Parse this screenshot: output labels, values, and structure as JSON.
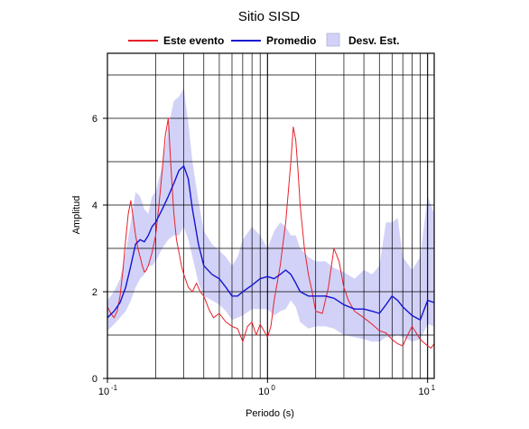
{
  "chart_data": {
    "type": "line",
    "title": "Sitio SISD",
    "xlabel": "Periodo (s)",
    "ylabel": "Amplitud",
    "xscale": "log",
    "xlim": [
      0.1,
      11
    ],
    "ylim": [
      0,
      7.5
    ],
    "x_ticks": [
      {
        "value": 0.1,
        "base": "10",
        "exp": "-1"
      },
      {
        "value": 1,
        "base": "10",
        "exp": "0"
      },
      {
        "value": 10,
        "base": "10",
        "exp": "1"
      }
    ],
    "y_ticks": [
      0,
      2,
      4,
      6
    ],
    "grid": true,
    "legend_position": "top",
    "colors": {
      "este_evento": "#e8202a",
      "promedio": "#1414d2",
      "desv_est": "#d2d2f8"
    },
    "series": [
      {
        "name": "Este evento",
        "color": "#e8202a",
        "x": [
          0.1,
          0.105,
          0.11,
          0.115,
          0.12,
          0.125,
          0.13,
          0.135,
          0.14,
          0.145,
          0.15,
          0.155,
          0.16,
          0.165,
          0.17,
          0.175,
          0.18,
          0.19,
          0.2,
          0.21,
          0.22,
          0.23,
          0.24,
          0.245,
          0.25,
          0.26,
          0.27,
          0.28,
          0.29,
          0.3,
          0.32,
          0.34,
          0.36,
          0.38,
          0.4,
          0.43,
          0.46,
          0.5,
          0.55,
          0.6,
          0.65,
          0.7,
          0.75,
          0.8,
          0.85,
          0.9,
          0.95,
          1.0,
          1.05,
          1.1,
          1.2,
          1.3,
          1.4,
          1.45,
          1.5,
          1.55,
          1.6,
          1.7,
          1.8,
          1.9,
          2.0,
          2.2,
          2.4,
          2.6,
          2.7,
          2.8,
          3.0,
          3.2,
          3.5,
          4.0,
          4.5,
          5.0,
          5.5,
          6.0,
          6.5,
          7.0,
          7.5,
          8.0,
          9.0,
          10.0,
          10.5,
          11.0
        ],
        "y": [
          1.65,
          1.5,
          1.4,
          1.55,
          1.9,
          2.5,
          3.2,
          3.8,
          4.1,
          3.7,
          3.3,
          3.0,
          2.8,
          2.6,
          2.45,
          2.5,
          2.6,
          2.9,
          3.3,
          4.0,
          4.8,
          5.6,
          6.0,
          5.4,
          4.8,
          3.8,
          3.2,
          2.9,
          2.6,
          2.4,
          2.1,
          2.0,
          2.2,
          2.0,
          1.9,
          1.6,
          1.4,
          1.5,
          1.3,
          1.2,
          1.15,
          0.85,
          1.2,
          1.3,
          1.0,
          1.25,
          1.1,
          0.95,
          1.2,
          1.8,
          2.6,
          3.6,
          5.0,
          5.8,
          5.5,
          4.8,
          4.0,
          3.0,
          2.4,
          2.0,
          1.55,
          1.5,
          2.1,
          3.0,
          2.85,
          2.7,
          2.1,
          1.8,
          1.55,
          1.4,
          1.25,
          1.1,
          1.05,
          0.9,
          0.8,
          0.75,
          1.0,
          1.2,
          0.9,
          0.75,
          0.7,
          0.8
        ]
      },
      {
        "name": "Promedio",
        "color": "#1414d2",
        "x": [
          0.1,
          0.11,
          0.12,
          0.13,
          0.14,
          0.15,
          0.16,
          0.17,
          0.18,
          0.19,
          0.2,
          0.22,
          0.24,
          0.26,
          0.28,
          0.3,
          0.32,
          0.34,
          0.37,
          0.4,
          0.45,
          0.5,
          0.55,
          0.6,
          0.65,
          0.7,
          0.8,
          0.9,
          1.0,
          1.1,
          1.2,
          1.3,
          1.4,
          1.5,
          1.6,
          1.8,
          2.0,
          2.3,
          2.6,
          3.0,
          3.5,
          4.0,
          4.5,
          5.0,
          5.5,
          6.0,
          6.5,
          7.0,
          8.0,
          9.0,
          10.0,
          11.0
        ],
        "y": [
          1.4,
          1.55,
          1.75,
          2.1,
          2.6,
          3.1,
          3.2,
          3.15,
          3.3,
          3.5,
          3.6,
          3.9,
          4.2,
          4.5,
          4.8,
          4.9,
          4.6,
          3.9,
          3.1,
          2.6,
          2.4,
          2.3,
          2.1,
          1.9,
          1.9,
          2.0,
          2.15,
          2.3,
          2.35,
          2.3,
          2.4,
          2.5,
          2.4,
          2.2,
          2.0,
          1.9,
          1.9,
          1.9,
          1.85,
          1.7,
          1.6,
          1.6,
          1.55,
          1.5,
          1.7,
          1.9,
          1.8,
          1.65,
          1.45,
          1.35,
          1.8,
          1.75
        ]
      }
    ],
    "bands": [
      {
        "name": "Desv. Est.",
        "color": "#d2d2f8",
        "x": [
          0.1,
          0.11,
          0.12,
          0.13,
          0.14,
          0.15,
          0.16,
          0.17,
          0.18,
          0.19,
          0.2,
          0.22,
          0.24,
          0.26,
          0.28,
          0.3,
          0.32,
          0.34,
          0.37,
          0.4,
          0.45,
          0.5,
          0.55,
          0.6,
          0.65,
          0.7,
          0.8,
          0.9,
          1.0,
          1.1,
          1.2,
          1.3,
          1.4,
          1.5,
          1.6,
          1.8,
          2.0,
          2.3,
          2.6,
          3.0,
          3.5,
          4.0,
          4.5,
          5.0,
          5.5,
          6.0,
          6.5,
          7.0,
          8.0,
          9.0,
          10.0,
          11.0
        ],
        "upper": [
          1.8,
          2.0,
          2.3,
          2.9,
          3.6,
          4.3,
          4.2,
          3.9,
          3.8,
          4.2,
          4.3,
          4.9,
          5.8,
          6.4,
          6.5,
          6.7,
          5.9,
          5.0,
          4.1,
          3.4,
          3.1,
          2.95,
          2.8,
          2.6,
          2.8,
          3.2,
          3.5,
          3.3,
          3.0,
          3.4,
          3.6,
          3.5,
          3.3,
          3.3,
          3.0,
          2.8,
          2.7,
          2.7,
          2.55,
          2.45,
          2.3,
          2.5,
          2.4,
          2.6,
          3.6,
          3.6,
          3.7,
          2.8,
          2.5,
          2.8,
          4.2,
          3.8
        ],
        "lower": [
          1.1,
          1.25,
          1.4,
          1.55,
          1.8,
          2.1,
          2.3,
          2.4,
          2.6,
          2.6,
          2.7,
          3.0,
          3.2,
          3.3,
          3.3,
          3.5,
          3.2,
          2.8,
          2.2,
          1.9,
          1.8,
          1.7,
          1.55,
          1.35,
          1.4,
          1.45,
          1.6,
          1.6,
          1.6,
          1.45,
          1.55,
          1.6,
          1.8,
          1.65,
          1.3,
          1.15,
          1.2,
          1.2,
          1.15,
          1.0,
          0.95,
          0.9,
          0.85,
          0.85,
          0.95,
          0.95,
          1.0,
          0.95,
          0.85,
          0.9,
          1.25,
          1.2
        ]
      }
    ],
    "legend": [
      {
        "label": "Este evento",
        "kind": "line",
        "color": "#e8202a"
      },
      {
        "label": "Promedio",
        "kind": "line",
        "color": "#1414d2"
      },
      {
        "label": "Desv. Est.",
        "kind": "box",
        "color": "#d2d2f8"
      }
    ]
  }
}
